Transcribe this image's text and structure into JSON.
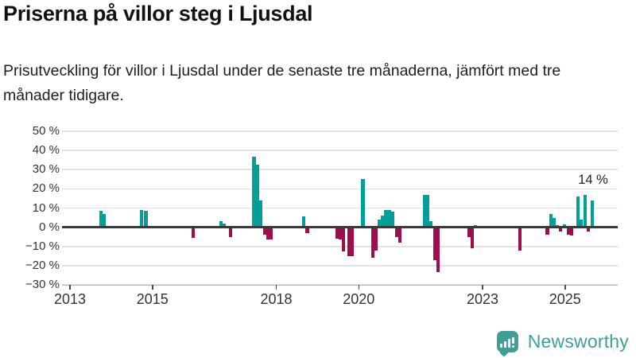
{
  "title": "Priserna på villor steg i Ljusdal",
  "subtitle": "Prisutveckling för villor i Ljusdal under de senaste tre månaderna, jämfört med tre månader tidigare.",
  "annotation": "14 %",
  "logo": {
    "text": "Newsworthy"
  },
  "colors": {
    "positive": "#00a099",
    "negative": "#9e0d4c",
    "grid": "#e2e2e2",
    "zero_line": "#3a3a3a",
    "axis_text": "#333333",
    "logo_teal": "#3f9f98"
  },
  "chart_data": {
    "type": "bar",
    "title": "Priserna på villor steg i Ljusdal",
    "subtitle": "Prisutveckling för villor i Ljusdal under de senaste tre månaderna, jämfört med tre månader tidigare.",
    "xlabel": "",
    "ylabel": "%",
    "ylim": [
      -30,
      50
    ],
    "xlim": [
      2012.8,
      2026.3
    ],
    "grid": true,
    "legend": "none",
    "yticks": [
      50,
      40,
      30,
      20,
      10,
      0,
      -10,
      -20,
      -30
    ],
    "ytick_labels": [
      "50 %",
      "40 %",
      "30 %",
      "20 %",
      "10 %",
      "0 %",
      "−10 %",
      "−20 %",
      "−30 %"
    ],
    "xticks": [
      2013,
      2015,
      2018,
      2020,
      2023,
      2025
    ],
    "xtick_labels": [
      "2013",
      "2015",
      "2018",
      "2020",
      "2023",
      "2025"
    ],
    "annotation": {
      "text": "14 %",
      "x": 2025.66,
      "y": 14
    },
    "points": [
      {
        "x": 2013.75,
        "y": 8.5
      },
      {
        "x": 2013.83,
        "y": 7
      },
      {
        "x": 2014.74,
        "y": 9
      },
      {
        "x": 2014.84,
        "y": 8.5
      },
      {
        "x": 2015.98,
        "y": -5.5
      },
      {
        "x": 2016.66,
        "y": 3.2
      },
      {
        "x": 2016.74,
        "y": 2
      },
      {
        "x": 2016.9,
        "y": -5
      },
      {
        "x": 2017.46,
        "y": 36.5
      },
      {
        "x": 2017.55,
        "y": 32.5
      },
      {
        "x": 2017.63,
        "y": 14
      },
      {
        "x": 2017.72,
        "y": -4
      },
      {
        "x": 2017.8,
        "y": -6.5
      },
      {
        "x": 2017.87,
        "y": -6.5
      },
      {
        "x": 2018.67,
        "y": 5.5
      },
      {
        "x": 2018.75,
        "y": -3
      },
      {
        "x": 2019.47,
        "y": -6
      },
      {
        "x": 2019.55,
        "y": -6.5
      },
      {
        "x": 2019.63,
        "y": -12.5
      },
      {
        "x": 2019.76,
        "y": -15
      },
      {
        "x": 2019.84,
        "y": -15
      },
      {
        "x": 2020.1,
        "y": 25
      },
      {
        "x": 2020.34,
        "y": -16
      },
      {
        "x": 2020.42,
        "y": -12
      },
      {
        "x": 2020.5,
        "y": 4
      },
      {
        "x": 2020.58,
        "y": 6
      },
      {
        "x": 2020.66,
        "y": 9
      },
      {
        "x": 2020.74,
        "y": 9
      },
      {
        "x": 2020.82,
        "y": 8
      },
      {
        "x": 2020.92,
        "y": -5
      },
      {
        "x": 2021.0,
        "y": -8
      },
      {
        "x": 2021.59,
        "y": 17
      },
      {
        "x": 2021.67,
        "y": 17
      },
      {
        "x": 2021.75,
        "y": 3.3
      },
      {
        "x": 2021.84,
        "y": -17
      },
      {
        "x": 2021.92,
        "y": -23.5
      },
      {
        "x": 2022.67,
        "y": -5
      },
      {
        "x": 2022.75,
        "y": -11
      },
      {
        "x": 2022.83,
        "y": 1.2
      },
      {
        "x": 2023.9,
        "y": -12
      },
      {
        "x": 2024.57,
        "y": -4
      },
      {
        "x": 2024.66,
        "y": 7
      },
      {
        "x": 2024.73,
        "y": 5
      },
      {
        "x": 2024.81,
        "y": 1.2
      },
      {
        "x": 2024.89,
        "y": -2
      },
      {
        "x": 2024.98,
        "y": 1.4
      },
      {
        "x": 2025.08,
        "y": -4
      },
      {
        "x": 2025.16,
        "y": -4.3
      },
      {
        "x": 2025.31,
        "y": 16
      },
      {
        "x": 2025.39,
        "y": 4
      },
      {
        "x": 2025.49,
        "y": 17
      },
      {
        "x": 2025.56,
        "y": -2
      },
      {
        "x": 2025.66,
        "y": 14
      }
    ]
  }
}
